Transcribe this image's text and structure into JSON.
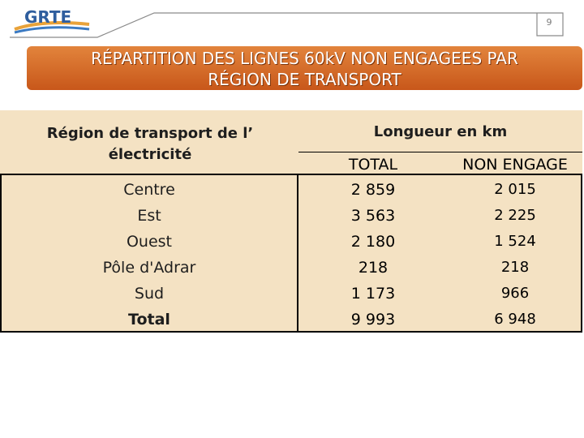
{
  "header": {
    "logo_text": "GRTE",
    "page_number": "9"
  },
  "title": {
    "line1": "RÉPARTITION DES LIGNES 60kV NON ENGAGEES PAR",
    "line2": "RÉGION DE TRANSPORT"
  },
  "table": {
    "region_header": "Région de transport de l’ électricité",
    "length_header": "Longueur en km",
    "col_total": "TOTAL",
    "col_non_engage": "NON ENGAGE",
    "rows": [
      {
        "region": "Centre",
        "total": "2 859",
        "non_engage": "2 015"
      },
      {
        "region": "Est",
        "total": "3 563",
        "non_engage": "2 225"
      },
      {
        "region": "Ouest",
        "total": "2 180",
        "non_engage": "1 524"
      },
      {
        "region": "Pôle d'Adrar",
        "total": "218",
        "non_engage": "218"
      },
      {
        "region": "Sud",
        "total": "1 173",
        "non_engage": "966"
      },
      {
        "region": "Total",
        "total": "9 993",
        "non_engage": "6 948"
      }
    ]
  },
  "colors": {
    "banner": "#d4652a",
    "table_bg": "#f4e2c3"
  }
}
